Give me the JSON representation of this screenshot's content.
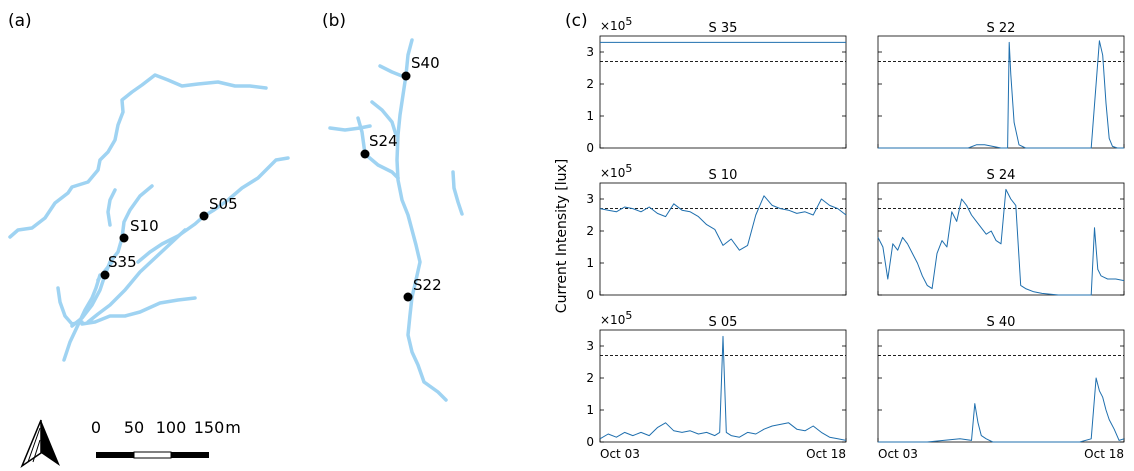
{
  "panels": {
    "a": "(a)",
    "b": "(b)",
    "c": "(c)"
  },
  "map_a": {
    "stations": [
      {
        "name": "S10"
      },
      {
        "name": "S35"
      },
      {
        "name": "S05"
      }
    ],
    "scale_bar": {
      "ticks": [
        "0",
        "50",
        "100",
        "150"
      ],
      "unit": "m"
    }
  },
  "map_b": {
    "stations": [
      {
        "name": "S40"
      },
      {
        "name": "S24"
      },
      {
        "name": "S22"
      }
    ]
  },
  "colors": {
    "river": "#9fd3f2",
    "series": "#1f6fae",
    "threshold": "#000000",
    "station": "#000000"
  },
  "chart_data": {
    "type": "line",
    "ylabel": "Current Intensity [lux]",
    "y_multiplier": "×10",
    "y_exponent": "5",
    "ylim": [
      0,
      3.5
    ],
    "yticks": [
      "0",
      "1",
      "2",
      "3"
    ],
    "xlim": [
      "2023-10-03",
      "2023-10-18"
    ],
    "xticks": [
      {
        "label": "Oct 03",
        "value": 0
      },
      {
        "label": "Oct 18",
        "value": 15
      }
    ],
    "threshold": 2.7,
    "subplots": [
      {
        "title": "S 35",
        "x": [
          0,
          15
        ],
        "values": [
          3.3,
          3.3
        ]
      },
      {
        "title": "S 22",
        "x": [
          0,
          5.5,
          6,
          6.5,
          7,
          7.5,
          7.9,
          8,
          8.1,
          8.3,
          8.6,
          9,
          9.5,
          10,
          11,
          12,
          13,
          13.5,
          13.7,
          13.9,
          14.1,
          14.3,
          14.6,
          15
        ],
        "values": [
          0,
          0,
          0.1,
          0.1,
          0.05,
          0,
          0,
          3.3,
          2.3,
          0.8,
          0.1,
          0,
          0,
          0,
          0,
          0,
          0,
          3.35,
          2.9,
          1.4,
          0.3,
          0.05,
          0,
          0
        ]
      },
      {
        "title": "S 10",
        "x": [
          0,
          0.5,
          1,
          1.5,
          2,
          2.5,
          3,
          3.5,
          4,
          4.5,
          5,
          5.5,
          6,
          6.5,
          7,
          7.5,
          8,
          8.5,
          9,
          9.5,
          10,
          10.5,
          11,
          11.5,
          12,
          12.5,
          13,
          13.5,
          14,
          14.5,
          15
        ],
        "values": [
          2.7,
          2.65,
          2.6,
          2.75,
          2.7,
          2.6,
          2.75,
          2.55,
          2.45,
          2.85,
          2.65,
          2.6,
          2.45,
          2.2,
          2.05,
          1.55,
          1.75,
          1.4,
          1.55,
          2.5,
          3.1,
          2.8,
          2.7,
          2.65,
          2.55,
          2.6,
          2.5,
          3.0,
          2.8,
          2.7,
          2.5
        ]
      },
      {
        "title": "S 24",
        "x": [
          0,
          0.3,
          0.6,
          0.9,
          1.2,
          1.5,
          1.8,
          2.1,
          2.4,
          2.7,
          3,
          3.3,
          3.6,
          3.9,
          4.2,
          4.5,
          4.8,
          5.1,
          5.4,
          5.7,
          6,
          6.3,
          6.6,
          6.9,
          7.2,
          7.5,
          7.8,
          8.1,
          8.4,
          8.7,
          9,
          9.5,
          10,
          11,
          12,
          13,
          13.2,
          13.4,
          13.6,
          13.8,
          14,
          14.5,
          15
        ],
        "values": [
          1.8,
          1.5,
          0.5,
          1.6,
          1.4,
          1.8,
          1.6,
          1.3,
          1.0,
          0.6,
          0.3,
          0.2,
          1.3,
          1.7,
          1.5,
          2.6,
          2.3,
          3.0,
          2.8,
          2.5,
          2.3,
          2.1,
          1.9,
          2.0,
          1.7,
          1.6,
          3.3,
          3.0,
          2.8,
          0.3,
          0.2,
          0.1,
          0.05,
          0,
          0,
          0,
          2.1,
          0.8,
          0.6,
          0.55,
          0.5,
          0.5,
          0.45
        ]
      },
      {
        "title": "S 05",
        "x": [
          0,
          0.5,
          1,
          1.5,
          2,
          2.5,
          3,
          3.5,
          4,
          4.5,
          5,
          5.5,
          6,
          6.5,
          7,
          7.3,
          7.5,
          7.7,
          8,
          8.5,
          9,
          9.5,
          10,
          10.5,
          11,
          11.5,
          12,
          12.5,
          13,
          13.5,
          14,
          14.5,
          15
        ],
        "values": [
          0.1,
          0.25,
          0.15,
          0.3,
          0.2,
          0.3,
          0.2,
          0.45,
          0.6,
          0.35,
          0.3,
          0.35,
          0.25,
          0.3,
          0.2,
          0.3,
          3.3,
          0.3,
          0.2,
          0.15,
          0.3,
          0.25,
          0.4,
          0.5,
          0.55,
          0.6,
          0.4,
          0.35,
          0.5,
          0.3,
          0.15,
          0.1,
          0.05
        ]
      },
      {
        "title": "S 40",
        "x": [
          0,
          3,
          5,
          5.7,
          5.9,
          6.1,
          6.3,
          6.6,
          7,
          8,
          9,
          10,
          11,
          12.3,
          13,
          13.3,
          13.5,
          13.7,
          13.9,
          14.1,
          14.4,
          14.7,
          15
        ],
        "values": [
          0,
          0,
          0.1,
          0.05,
          1.2,
          0.6,
          0.2,
          0.1,
          0,
          0,
          0,
          0,
          0,
          0,
          0.1,
          2.0,
          1.6,
          1.4,
          1.0,
          0.7,
          0.4,
          0.05,
          0.1
        ]
      }
    ]
  }
}
